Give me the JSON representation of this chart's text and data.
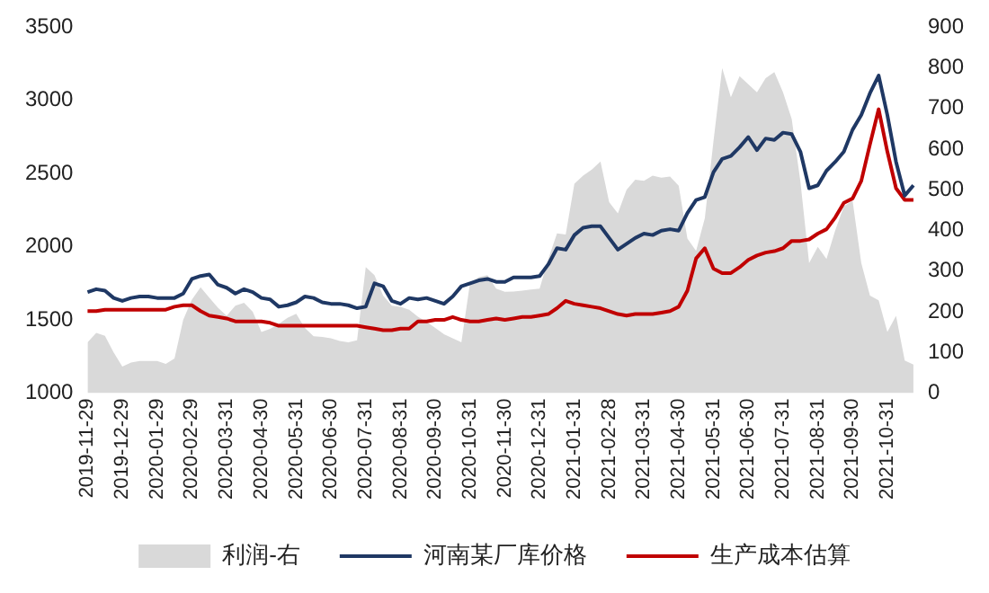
{
  "chart_data": {
    "type": "line",
    "categories": [
      "2019-11-29",
      null,
      null,
      null,
      "2019-12-29",
      null,
      null,
      null,
      "2020-01-29",
      null,
      null,
      null,
      "2020-02-29",
      null,
      null,
      null,
      "2020-03-31",
      null,
      null,
      null,
      "2020-04-30",
      null,
      null,
      null,
      "2020-05-31",
      null,
      null,
      null,
      "2020-06-30",
      null,
      null,
      null,
      "2020-07-31",
      null,
      null,
      null,
      "2020-08-31",
      null,
      null,
      null,
      "2020-09-30",
      null,
      null,
      null,
      "2020-10-31",
      null,
      null,
      null,
      "2020-11-30",
      null,
      null,
      null,
      "2020-12-31",
      null,
      null,
      null,
      "2021-01-31",
      null,
      null,
      null,
      "2021-02-28",
      null,
      null,
      null,
      "2021-03-31",
      null,
      null,
      null,
      "2021-04-30",
      null,
      null,
      null,
      "2021-05-31",
      null,
      null,
      null,
      "2021-06-30",
      null,
      null,
      null,
      "2021-07-31",
      null,
      null,
      null,
      "2021-08-31",
      null,
      null,
      null,
      "2021-09-30",
      null,
      null,
      null,
      "2021-10-31",
      null,
      null,
      null
    ],
    "series": [
      {
        "name": "利润-右",
        "type": "area",
        "axis": "y2",
        "color": "#d9d9d9",
        "values": [
          125,
          148,
          141,
          100,
          65,
          75,
          79,
          79,
          79,
          72,
          85,
          180,
          230,
          260,
          235,
          210,
          190,
          215,
          222,
          200,
          150,
          158,
          170,
          185,
          195,
          160,
          140,
          138,
          135,
          128,
          125,
          130,
          310,
          290,
          240,
          215,
          212,
          205,
          188,
          175,
          160,
          145,
          135,
          125,
          272,
          285,
          290,
          257,
          249,
          250,
          252,
          255,
          257,
          330,
          393,
          390,
          515,
          535,
          550,
          570,
          470,
          442,
          500,
          525,
          522,
          535,
          530,
          533,
          510,
          380,
          350,
          430,
          620,
          800,
          728,
          780,
          760,
          740,
          775,
          790,
          740,
          674,
          520,
          320,
          360,
          330,
          400,
          460,
          473,
          320,
          240,
          228,
          150,
          190,
          80,
          70
        ]
      },
      {
        "name": "河南某厂库价格",
        "color": "#1f3864",
        "values": [
          1690,
          1710,
          1700,
          1650,
          1630,
          1650,
          1660,
          1660,
          1650,
          1650,
          1650,
          1680,
          1780,
          1800,
          1810,
          1740,
          1720,
          1680,
          1710,
          1690,
          1650,
          1640,
          1590,
          1600,
          1620,
          1660,
          1650,
          1620,
          1610,
          1610,
          1600,
          1580,
          1590,
          1750,
          1730,
          1630,
          1610,
          1650,
          1640,
          1650,
          1630,
          1610,
          1660,
          1730,
          1750,
          1770,
          1780,
          1760,
          1760,
          1790,
          1790,
          1790,
          1800,
          1880,
          1990,
          1980,
          2080,
          2130,
          2140,
          2140,
          2060,
          1980,
          2020,
          2060,
          2090,
          2080,
          2110,
          2120,
          2110,
          2230,
          2320,
          2340,
          2510,
          2600,
          2620,
          2680,
          2750,
          2660,
          2740,
          2730,
          2780,
          2770,
          2650,
          2400,
          2420,
          2520,
          2580,
          2650,
          2800,
          2900,
          3050,
          3170,
          2900,
          2580,
          2350,
          2420
        ]
      },
      {
        "name": "生产成本估算",
        "color": "#c00000",
        "values": [
          1560,
          1560,
          1570,
          1570,
          1570,
          1570,
          1570,
          1570,
          1570,
          1570,
          1590,
          1600,
          1600,
          1560,
          1530,
          1520,
          1510,
          1490,
          1490,
          1490,
          1490,
          1480,
          1460,
          1460,
          1460,
          1460,
          1460,
          1460,
          1460,
          1460,
          1460,
          1460,
          1450,
          1440,
          1430,
          1430,
          1440,
          1440,
          1490,
          1490,
          1500,
          1500,
          1520,
          1500,
          1490,
          1490,
          1500,
          1510,
          1500,
          1510,
          1520,
          1520,
          1530,
          1540,
          1580,
          1630,
          1610,
          1600,
          1590,
          1580,
          1560,
          1540,
          1530,
          1540,
          1540,
          1540,
          1550,
          1560,
          1590,
          1700,
          1920,
          1990,
          1850,
          1820,
          1820,
          1860,
          1910,
          1940,
          1960,
          1970,
          1990,
          2040,
          2040,
          2050,
          2090,
          2120,
          2200,
          2300,
          2330,
          2450,
          2700,
          2940,
          2650,
          2400,
          2320,
          2320
        ]
      }
    ],
    "ylim": [
      1000,
      3500
    ],
    "yticks": [
      1000,
      1500,
      2000,
      2500,
      3000,
      3500
    ],
    "y2lim": [
      0,
      900
    ],
    "y2ticks": [
      0,
      100,
      200,
      300,
      400,
      500,
      600,
      700,
      800,
      900
    ],
    "grid": false,
    "legend": "bottom",
    "marker": "none",
    "line_style": "solid"
  }
}
